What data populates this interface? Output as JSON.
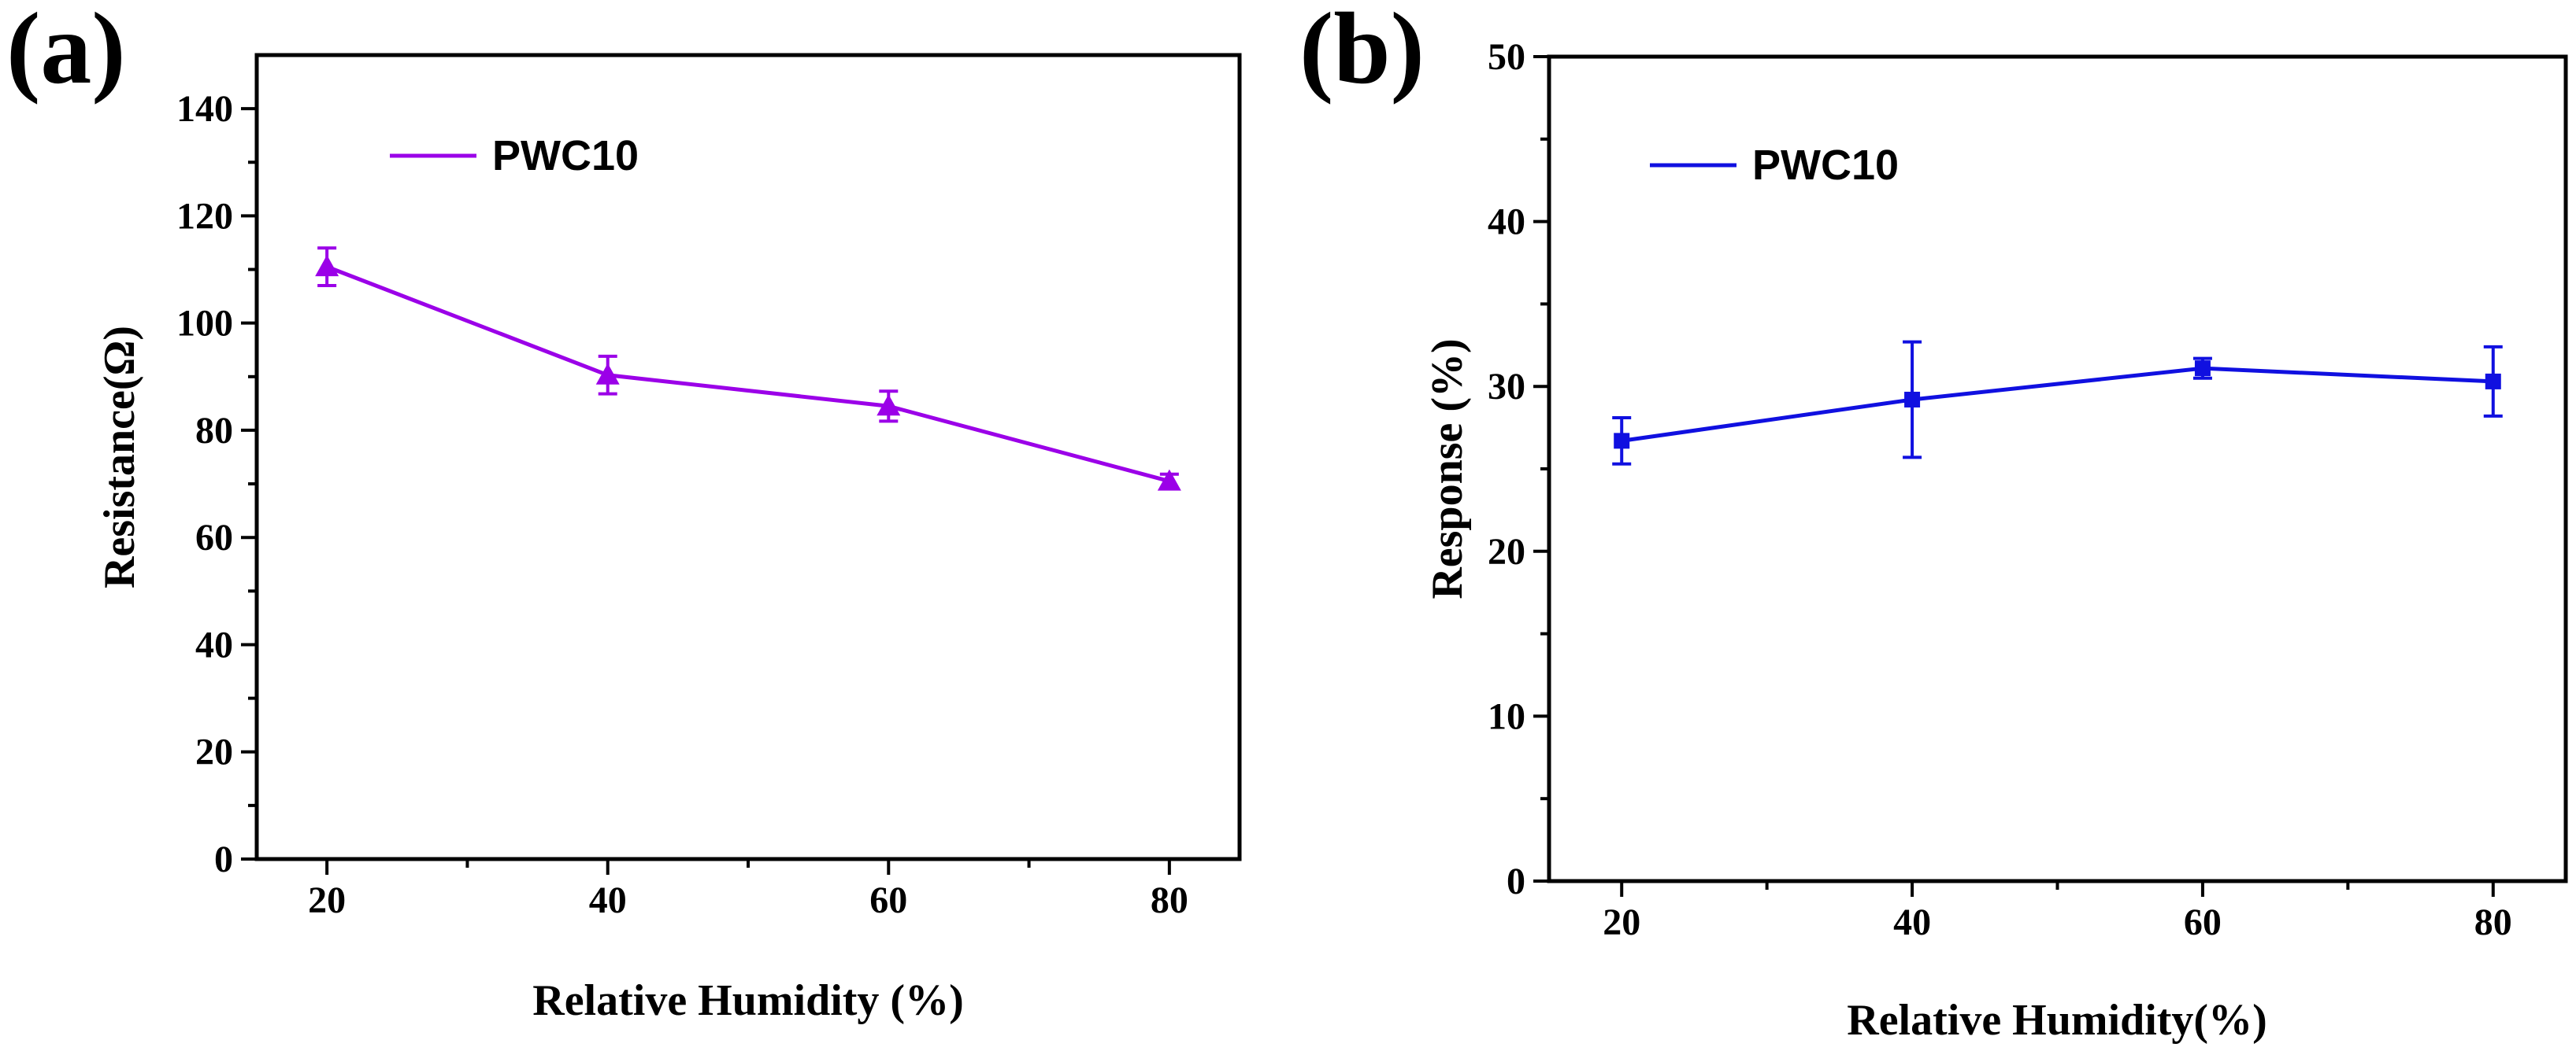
{
  "chart_data": [
    {
      "panel_label": "(a)",
      "type": "line",
      "xlabel": "Relative Humidity (%)",
      "ylabel": "Resistance(Ω)",
      "xlim": [
        15,
        85
      ],
      "ylim": [
        0,
        150
      ],
      "xticks": [
        20,
        40,
        60,
        80
      ],
      "yticks": [
        0,
        20,
        40,
        60,
        80,
        100,
        120,
        140
      ],
      "legend_position": "top-left",
      "series": [
        {
          "name": "PWC10",
          "marker": "triangle",
          "color": "#9b00e8",
          "x": [
            20,
            40,
            60,
            80
          ],
          "values": [
            110.5,
            90.3,
            84.5,
            70.5
          ],
          "errors": [
            3.5,
            3.5,
            2.8,
            1.3
          ]
        }
      ]
    },
    {
      "panel_label": "(b)",
      "type": "line",
      "xlabel": "Relative Humidity(%)",
      "ylabel": "Response (%)",
      "xlim": [
        15,
        85
      ],
      "ylim": [
        0,
        50
      ],
      "xticks": [
        20,
        40,
        60,
        80
      ],
      "yticks": [
        0,
        10,
        20,
        30,
        40,
        50
      ],
      "legend_position": "top-left",
      "series": [
        {
          "name": "PWC10",
          "marker": "square",
          "color": "#1010e0",
          "x": [
            20,
            40,
            60,
            80
          ],
          "values": [
            26.7,
            29.2,
            31.1,
            30.3
          ],
          "errors": [
            1.4,
            3.5,
            0.6,
            2.1
          ]
        }
      ]
    }
  ]
}
